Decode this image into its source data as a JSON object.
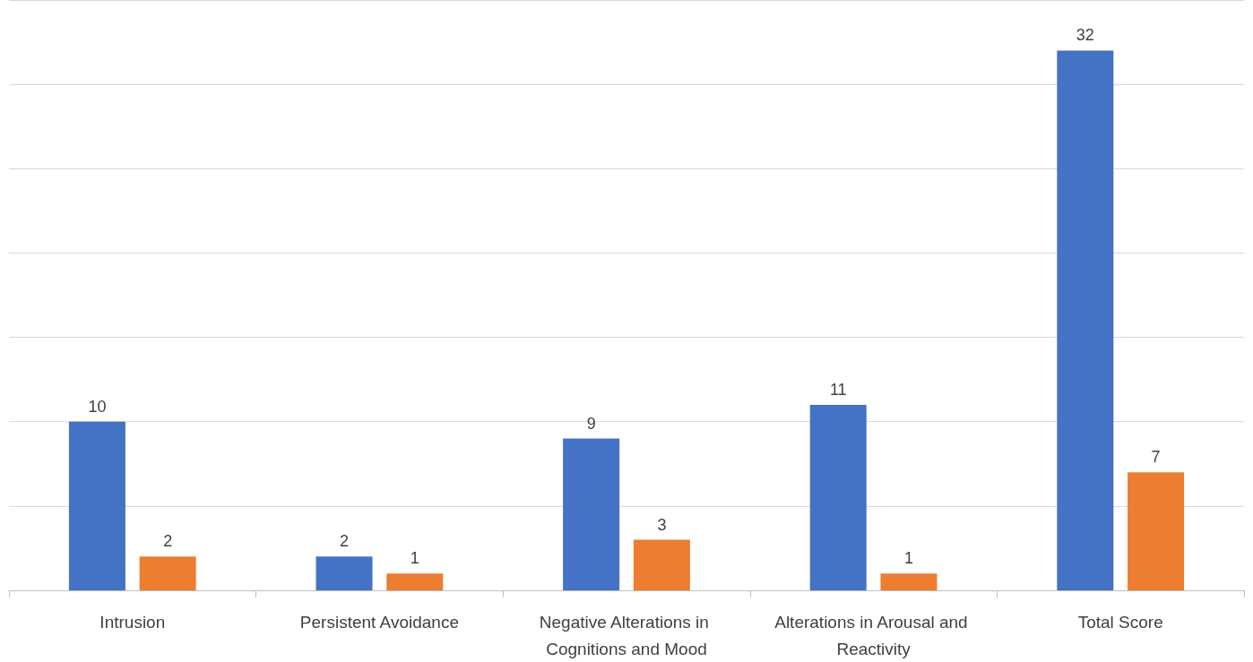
{
  "chart_data": {
    "type": "bar",
    "categories": [
      "Intrusion",
      "Persistent Avoidance",
      "Negative Alterations in Cognitions and Mood",
      "Alterations in Arousal and Reactivity",
      "Total Score"
    ],
    "series": [
      {
        "color": "#4472c4",
        "values": [
          10,
          2,
          9,
          11,
          32
        ]
      },
      {
        "color": "#ed7d31",
        "values": [
          2,
          1,
          3,
          1,
          7
        ]
      }
    ],
    "ylim": [
      0,
      35
    ],
    "yticks": [
      {
        "value": 0,
        "label": null
      },
      {
        "value": 5,
        "label": null
      },
      {
        "value": 10,
        "label": null
      },
      {
        "value": 15,
        "label": null
      },
      {
        "value": 20,
        "label": null
      },
      {
        "value": 25,
        "label": null
      },
      {
        "value": 30,
        "label": null
      },
      {
        "value": 35,
        "label": null
      }
    ],
    "grid": "y",
    "tick_labels": "x",
    "data_labels": true
  }
}
